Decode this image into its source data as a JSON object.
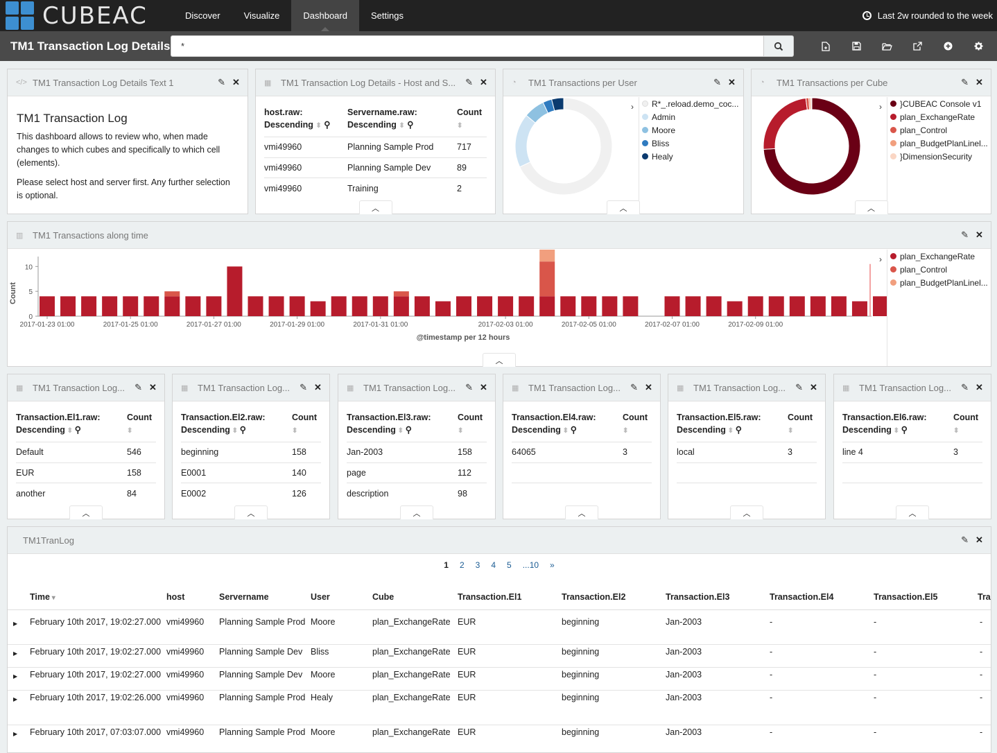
{
  "app": {
    "logo": "CUBEAC",
    "nav": [
      "Discover",
      "Visualize",
      "Dashboard",
      "Settings"
    ],
    "active_nav": "Dashboard",
    "time_range": "Last 2w rounded to the week"
  },
  "search": {
    "dashboard_title": "TM1 Transaction Log Details",
    "query": "*"
  },
  "toolbar": [
    "new-dashboard-icon",
    "save-icon",
    "open-icon",
    "share-icon",
    "add-panel-icon",
    "options-icon"
  ],
  "panels": {
    "text": {
      "title": "TM1 Transaction Log Details Text 1",
      "heading": "TM1 Transaction Log",
      "p1": "This dashboard allows to review who, when made changes to which cubes and specifically to which cell (elements).",
      "p2": "Please select host and server first. Any further selection is optional."
    },
    "host_server": {
      "title": "TM1 Transaction Log Details - Host and S...",
      "col1": "host.raw:",
      "col2": "Servername.raw:",
      "col3": "Count",
      "sort": "Descending",
      "rows": [
        {
          "host": "vmi49960",
          "server": "Planning Sample Prod",
          "count": "717"
        },
        {
          "host": "vmi49960",
          "server": "Planning Sample Dev",
          "count": "89"
        },
        {
          "host": "vmi49960",
          "server": "Training",
          "count": "2"
        }
      ]
    },
    "per_user": {
      "title": "TM1 Transactions per User",
      "legend": [
        {
          "label": "R*_.reload.demo_coc...",
          "color": "#f0f0f0"
        },
        {
          "label": "Admin",
          "color": "#cde3f3"
        },
        {
          "label": "Moore",
          "color": "#8ec1e1"
        },
        {
          "label": "Bliss",
          "color": "#2f7bc0"
        },
        {
          "label": "Healy",
          "color": "#0b3b6f"
        }
      ]
    },
    "per_cube": {
      "title": "TM1 Transactions per Cube",
      "legend": [
        {
          "label": "}CUBEAC Console v1",
          "color": "#6a0015"
        },
        {
          "label": "plan_ExchangeRate",
          "color": "#b71c2c"
        },
        {
          "label": "plan_Control",
          "color": "#d9564a"
        },
        {
          "label": "plan_BudgetPlanLinel...",
          "color": "#f19f7e"
        },
        {
          "label": "}DimensionSecurity",
          "color": "#fad6c4"
        }
      ]
    },
    "along_time": {
      "title": "TM1 Transactions along time",
      "legend": [
        {
          "label": "plan_ExchangeRate",
          "color": "#b71c2c"
        },
        {
          "label": "plan_Control",
          "color": "#d9564a"
        },
        {
          "label": "plan_BudgetPlanLinel...",
          "color": "#f19f7e"
        }
      ]
    },
    "elements": [
      {
        "title": "TM1 Transaction Log...",
        "field": "Transaction.El1.raw:",
        "rows": [
          [
            "Default",
            "546"
          ],
          [
            "EUR",
            "158"
          ],
          [
            "another",
            "84"
          ]
        ]
      },
      {
        "title": "TM1 Transaction Log...",
        "field": "Transaction.El2.raw:",
        "rows": [
          [
            "beginning",
            "158"
          ],
          [
            "E0001",
            "140"
          ],
          [
            "E0002",
            "126"
          ]
        ]
      },
      {
        "title": "TM1 Transaction Log...",
        "field": "Transaction.El3.raw:",
        "rows": [
          [
            "Jan-2003",
            "158"
          ],
          [
            "page",
            "112"
          ],
          [
            "description",
            "98"
          ]
        ]
      },
      {
        "title": "TM1 Transaction Log...",
        "field": "Transaction.El4.raw:",
        "rows": [
          [
            "64065",
            "3"
          ]
        ]
      },
      {
        "title": "TM1 Transaction Log...",
        "field": "Transaction.El5.raw:",
        "rows": [
          [
            "local",
            "3"
          ]
        ]
      },
      {
        "title": "TM1 Transaction Log...",
        "field": "Transaction.El6.raw:",
        "rows": [
          [
            "line 4",
            "3"
          ]
        ]
      }
    ],
    "elements_sort": "Descending",
    "elements_count": "Count",
    "log": {
      "title": "TM1TranLog",
      "pages": [
        "1",
        "2",
        "3",
        "4",
        "5",
        "...10",
        "»"
      ],
      "columns": [
        "Time",
        "host",
        "Servername",
        "User",
        "Cube",
        "Transaction.El1",
        "Transaction.El2",
        "Transaction.El3",
        "Transaction.El4",
        "Transaction.El5",
        "Trai"
      ],
      "rows": [
        {
          "time": "February 10th 2017, 19:02:27.000",
          "host": "vmi49960",
          "server": "Planning Sample Prod",
          "user": "Moore",
          "cube": "plan_ExchangeRate",
          "el1": "EUR",
          "el2": "beginning",
          "el3": "Jan-2003",
          "el4": "-",
          "el5": "-",
          "el6": "-"
        },
        {
          "time": "February 10th 2017, 19:02:27.000",
          "host": "vmi49960",
          "server": "Planning Sample Dev",
          "user": "Bliss",
          "cube": "plan_ExchangeRate",
          "el1": "EUR",
          "el2": "beginning",
          "el3": "Jan-2003",
          "el4": "-",
          "el5": "-",
          "el6": "-"
        },
        {
          "time": "February 10th 2017, 19:02:27.000",
          "host": "vmi49960",
          "server": "Planning Sample Dev",
          "user": "Moore",
          "cube": "plan_ExchangeRate",
          "el1": "EUR",
          "el2": "beginning",
          "el3": "Jan-2003",
          "el4": "-",
          "el5": "-",
          "el6": "-"
        },
        {
          "time": "February 10th 2017, 19:02:26.000",
          "host": "vmi49960",
          "server": "Planning Sample Prod",
          "user": "Healy",
          "cube": "plan_ExchangeRate",
          "el1": "EUR",
          "el2": "beginning",
          "el3": "Jan-2003",
          "el4": "-",
          "el5": "-",
          "el6": "-"
        },
        {
          "time": "February 10th 2017, 07:03:07.000",
          "host": "vmi49960",
          "server": "Planning Sample Prod",
          "user": "Moore",
          "cube": "plan_ExchangeRate",
          "el1": "EUR",
          "el2": "beginning",
          "el3": "Jan-2003",
          "el4": "-",
          "el5": "-",
          "el6": "-"
        }
      ]
    }
  },
  "chart_data": [
    {
      "type": "pie",
      "labels": [
        "R*_.reload.demo_coc...",
        "Admin",
        "Moore",
        "Bliss",
        "Healy"
      ],
      "values": [
        68,
        18,
        7,
        3,
        4
      ]
    },
    {
      "type": "pie",
      "labels": [
        "}CUBEAC Console v1",
        "plan_ExchangeRate",
        "plan_Control",
        "plan_BudgetPlanLinel...",
        "}DimensionSecurity"
      ],
      "values": [
        74,
        24,
        1,
        0.6,
        0.4
      ]
    },
    {
      "type": "bar",
      "stacked": true,
      "xlabel": "@timestamp per 12 hours",
      "ylabel": "Count",
      "ylim": [
        0,
        12
      ],
      "yticks": [
        0,
        5,
        10
      ],
      "xticks": [
        "2017-01-23 01:00",
        "2017-01-25 01:00",
        "2017-01-27 01:00",
        "2017-01-29 01:00",
        "2017-01-31 01:00",
        "2017-02-03 01:00",
        "2017-02-05 01:00",
        "2017-02-07 01:00",
        "2017-02-09 01:00"
      ],
      "series": [
        {
          "name": "plan_ExchangeRate",
          "values": [
            4,
            4,
            4,
            4,
            4,
            4,
            4,
            4,
            4,
            10,
            4,
            4,
            4,
            3,
            4,
            4,
            4,
            4,
            4,
            3,
            4,
            4,
            4,
            4,
            4,
            4,
            4,
            4,
            4,
            0,
            4,
            4,
            4,
            3,
            4,
            4,
            4,
            4,
            4,
            3,
            4
          ]
        },
        {
          "name": "plan_Control",
          "values": [
            0,
            0,
            0,
            0,
            0,
            0,
            1,
            0,
            0,
            0,
            0,
            0,
            0,
            0,
            0,
            0,
            0,
            1,
            0,
            0,
            0,
            0,
            0,
            0,
            7,
            0,
            0,
            0,
            0,
            0,
            0,
            0,
            0,
            0,
            0,
            0,
            0,
            0,
            0,
            0,
            0
          ]
        },
        {
          "name": "plan_BudgetPlanLinel...",
          "values": [
            0,
            0,
            0,
            0,
            0,
            0,
            0,
            0,
            0,
            0,
            0,
            0,
            0,
            0,
            0,
            0,
            0,
            0,
            0,
            0,
            0,
            0,
            0,
            0,
            3,
            0,
            0,
            0,
            0,
            0,
            0,
            0,
            0,
            0,
            0,
            0,
            0,
            0,
            0,
            0,
            0
          ]
        }
      ]
    }
  ]
}
